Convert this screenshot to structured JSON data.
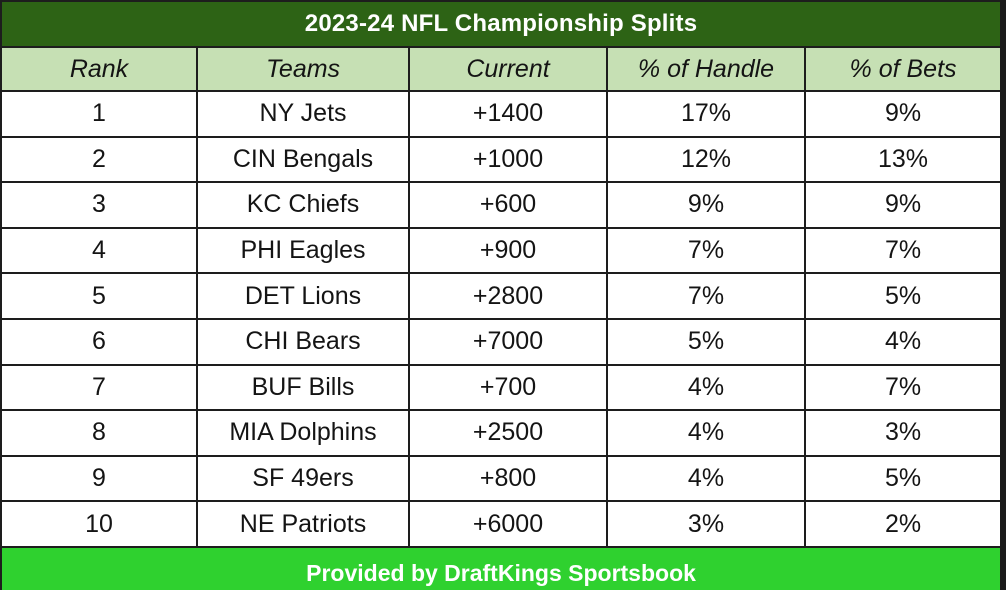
{
  "title": "2023-24 NFL Championship Splits",
  "headers": {
    "rank": "Rank",
    "teams": "Teams",
    "current": "Current",
    "handle": "% of Handle",
    "bets": "% of Bets"
  },
  "rows": [
    {
      "rank": "1",
      "team": "NY Jets",
      "current": "+1400",
      "handle": "17%",
      "bets": "9%"
    },
    {
      "rank": "2",
      "team": "CIN Bengals",
      "current": "+1000",
      "handle": "12%",
      "bets": "13%"
    },
    {
      "rank": "3",
      "team": "KC Chiefs",
      "current": "+600",
      "handle": "9%",
      "bets": "9%"
    },
    {
      "rank": "4",
      "team": "PHI Eagles",
      "current": "+900",
      "handle": "7%",
      "bets": "7%"
    },
    {
      "rank": "5",
      "team": "DET Lions",
      "current": "+2800",
      "handle": "7%",
      "bets": "5%"
    },
    {
      "rank": "6",
      "team": "CHI Bears",
      "current": "+7000",
      "handle": "5%",
      "bets": "4%"
    },
    {
      "rank": "7",
      "team": "BUF Bills",
      "current": "+700",
      "handle": "4%",
      "bets": "7%"
    },
    {
      "rank": "8",
      "team": "MIA Dolphins",
      "current": "+2500",
      "handle": "4%",
      "bets": "3%"
    },
    {
      "rank": "9",
      "team": "SF 49ers",
      "current": "+800",
      "handle": "4%",
      "bets": "5%"
    },
    {
      "rank": "10",
      "team": "NE Patriots",
      "current": "+6000",
      "handle": "3%",
      "bets": "2%"
    }
  ],
  "footer": "Provided by DraftKings Sportsbook",
  "colors": {
    "title_bg": "#2d6315",
    "header_bg": "#c6e0b4",
    "footer_bg": "#2fd12f"
  }
}
